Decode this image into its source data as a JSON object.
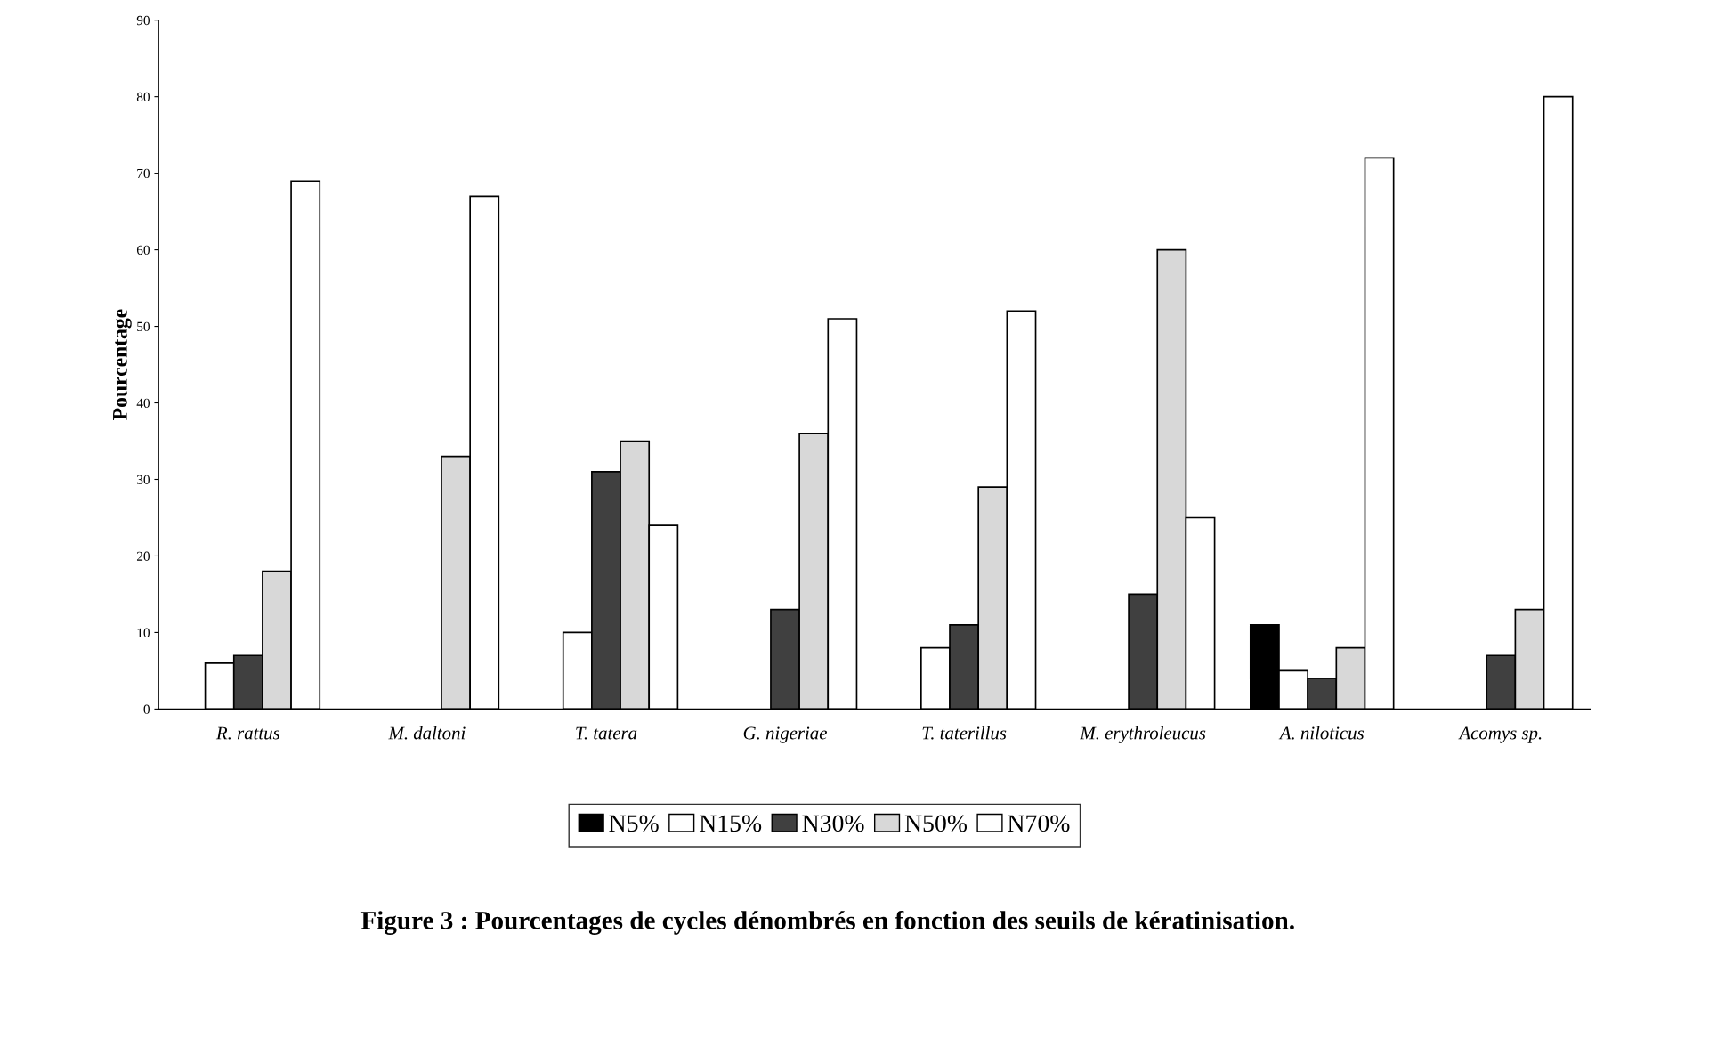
{
  "chart_data": {
    "type": "bar",
    "title": "Figure 3 : Pourcentages de cycles dénombrés en fonction des seuils de kératinisation.",
    "ylabel": "Pourcentage",
    "categories": [
      "R. rattus",
      "M. daltoni",
      "T. tatera",
      "G. nigeriae",
      "T. taterillus",
      "M. erythroleucus",
      "A. niloticus",
      "Acomys sp."
    ],
    "series": [
      {
        "name": "N5%",
        "color": "#000000",
        "values": [
          null,
          null,
          null,
          null,
          null,
          null,
          11,
          null
        ]
      },
      {
        "name": "N15%",
        "color": "#ffffff",
        "values": [
          6,
          null,
          10,
          null,
          8,
          null,
          5,
          null
        ]
      },
      {
        "name": "N30%",
        "color": "#404040",
        "values": [
          7,
          null,
          31,
          13,
          11,
          15,
          4,
          7
        ]
      },
      {
        "name": "N50%",
        "color": "#d8d8d8",
        "values": [
          18,
          33,
          35,
          36,
          29,
          60,
          8,
          13
        ]
      },
      {
        "name": "N70%",
        "color": "#ffffff",
        "values": [
          69,
          67,
          24,
          51,
          52,
          25,
          72,
          80
        ]
      }
    ],
    "ylim": [
      0,
      90
    ],
    "yticks": [
      0,
      10,
      20,
      30,
      40,
      50,
      60,
      70,
      80,
      90
    ],
    "grid": false,
    "legend": "bottom"
  }
}
